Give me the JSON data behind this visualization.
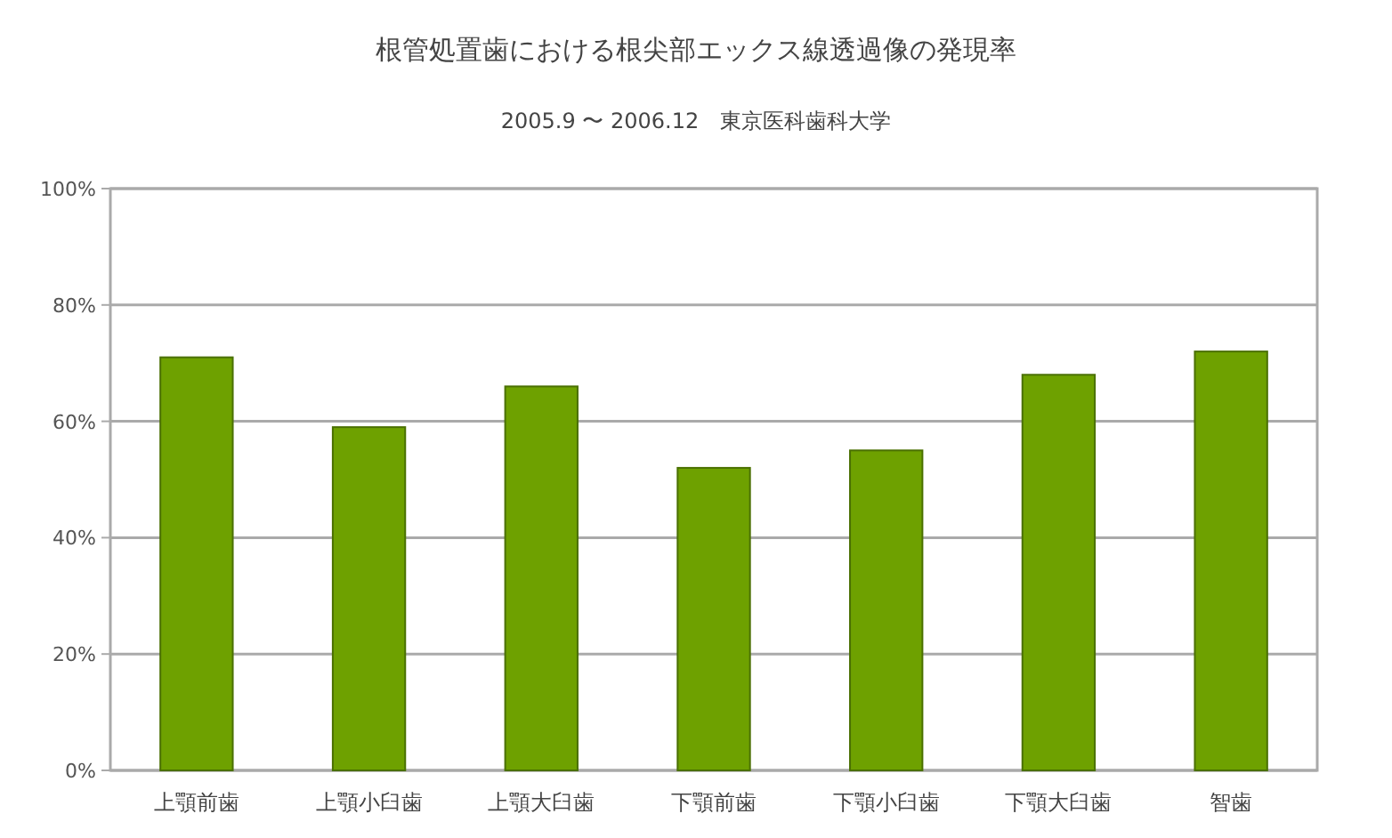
{
  "chart_data": {
    "type": "bar",
    "title": "根管処置歯における根尖部エックス線透過像の発現率",
    "subtitle": "2005.9 〜 2006.12　東京医科歯科大学",
    "categories": [
      "上顎前歯",
      "上顎小臼歯",
      "上顎大臼歯",
      "下顎前歯",
      "下顎小臼歯",
      "下顎大臼歯",
      "智歯"
    ],
    "values": [
      71,
      59,
      66,
      52,
      55,
      68,
      72
    ],
    "color": "#6ea100",
    "ylim": [
      0,
      100
    ],
    "yticks": [
      {
        "value": 0,
        "label": "0%"
      },
      {
        "value": 20,
        "label": "20%"
      },
      {
        "value": 40,
        "label": "40%"
      },
      {
        "value": 60,
        "label": "60%"
      },
      {
        "value": 80,
        "label": "80%"
      },
      {
        "value": 100,
        "label": "100%"
      }
    ],
    "grid": "y"
  }
}
